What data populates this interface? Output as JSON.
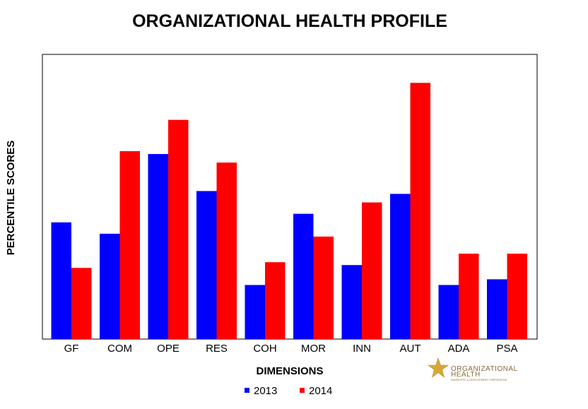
{
  "chart_data": {
    "type": "bar",
    "title": "ORGANIZATIONAL HEALTH PROFILE",
    "xlabel": "DIMENSIONS",
    "ylabel": "PERCENTILE SCORES",
    "categories": [
      "GF",
      "COM",
      "OPE",
      "RES",
      "COH",
      "MOR",
      "INN",
      "AUT",
      "ADA",
      "PSA"
    ],
    "series": [
      {
        "name": "2013",
        "color": "#0000ff",
        "values": [
          41,
          37,
          65,
          52,
          19,
          44,
          26,
          51,
          19,
          21
        ]
      },
      {
        "name": "2014",
        "color": "#ff0000",
        "values": [
          25,
          66,
          77,
          62,
          27,
          36,
          48,
          90,
          30,
          30
        ]
      }
    ],
    "ylim": [
      0,
      100
    ],
    "grid": false,
    "legend_position": "bottom-center"
  },
  "logo": {
    "name": "ORGANIZATIONAL",
    "name2": "HEALTH",
    "tagline": "DIAGNOSTIC & DEVELOPMENT CORPORATION"
  }
}
